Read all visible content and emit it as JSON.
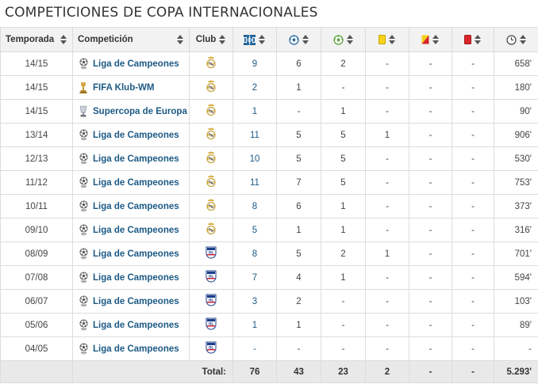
{
  "page": {
    "title": "COMPETICIONES DE COPA INTERNACIONALES"
  },
  "table": {
    "headers": {
      "season": "Temporada",
      "competition": "Competición",
      "club": "Club"
    },
    "stat_columns": [
      {
        "icon": "lineup-icon"
      },
      {
        "icon": "goal-icon"
      },
      {
        "icon": "assist-icon"
      },
      {
        "icon": "yellow-card-icon"
      },
      {
        "icon": "yellow-red-card-icon"
      },
      {
        "icon": "red-card-icon"
      },
      {
        "icon": "clock-icon"
      }
    ],
    "rows": [
      {
        "season": "14/15",
        "competition": "Liga de Campeones",
        "comp_icon": "champions-league-icon",
        "club_icon": "real-madrid-crest-icon",
        "apps": "9",
        "goals": "6",
        "assists": "2",
        "yellow": "-",
        "second_yellow": "-",
        "red": "-",
        "minutes": "658'"
      },
      {
        "season": "14/15",
        "competition": "FIFA Klub-WM",
        "comp_icon": "club-world-cup-trophy-icon",
        "club_icon": "real-madrid-crest-icon",
        "apps": "2",
        "goals": "1",
        "assists": "-",
        "yellow": "-",
        "second_yellow": "-",
        "red": "-",
        "minutes": "180'"
      },
      {
        "season": "14/15",
        "competition": "Supercopa de Europa",
        "comp_icon": "uefa-super-cup-icon",
        "club_icon": "real-madrid-crest-icon",
        "apps": "1",
        "goals": "-",
        "assists": "1",
        "yellow": "-",
        "second_yellow": "-",
        "red": "-",
        "minutes": "90'"
      },
      {
        "season": "13/14",
        "competition": "Liga de Campeones",
        "comp_icon": "champions-league-icon",
        "club_icon": "real-madrid-crest-icon",
        "apps": "11",
        "goals": "5",
        "assists": "5",
        "yellow": "1",
        "second_yellow": "-",
        "red": "-",
        "minutes": "906'"
      },
      {
        "season": "12/13",
        "competition": "Liga de Campeones",
        "comp_icon": "champions-league-icon",
        "club_icon": "real-madrid-crest-icon",
        "apps": "10",
        "goals": "5",
        "assists": "5",
        "yellow": "-",
        "second_yellow": "-",
        "red": "-",
        "minutes": "530'"
      },
      {
        "season": "11/12",
        "competition": "Liga de Campeones",
        "comp_icon": "champions-league-icon",
        "club_icon": "real-madrid-crest-icon",
        "apps": "11",
        "goals": "7",
        "assists": "5",
        "yellow": "-",
        "second_yellow": "-",
        "red": "-",
        "minutes": "753'"
      },
      {
        "season": "10/11",
        "competition": "Liga de Campeones",
        "comp_icon": "champions-league-icon",
        "club_icon": "real-madrid-crest-icon",
        "apps": "8",
        "goals": "6",
        "assists": "1",
        "yellow": "-",
        "second_yellow": "-",
        "red": "-",
        "minutes": "373'"
      },
      {
        "season": "09/10",
        "competition": "Liga de Campeones",
        "comp_icon": "champions-league-icon",
        "club_icon": "real-madrid-crest-icon",
        "apps": "5",
        "goals": "1",
        "assists": "1",
        "yellow": "-",
        "second_yellow": "-",
        "red": "-",
        "minutes": "316'"
      },
      {
        "season": "08/09",
        "competition": "Liga de Campeones",
        "comp_icon": "champions-league-icon",
        "club_icon": "olympique-lyon-crest-icon",
        "apps": "8",
        "goals": "5",
        "assists": "2",
        "yellow": "1",
        "second_yellow": "-",
        "red": "-",
        "minutes": "701'"
      },
      {
        "season": "07/08",
        "competition": "Liga de Campeones",
        "comp_icon": "champions-league-icon",
        "club_icon": "olympique-lyon-crest-icon",
        "apps": "7",
        "goals": "4",
        "assists": "1",
        "yellow": "-",
        "second_yellow": "-",
        "red": "-",
        "minutes": "594'"
      },
      {
        "season": "06/07",
        "competition": "Liga de Campeones",
        "comp_icon": "champions-league-icon",
        "club_icon": "olympique-lyon-crest-icon",
        "apps": "3",
        "goals": "2",
        "assists": "-",
        "yellow": "-",
        "second_yellow": "-",
        "red": "-",
        "minutes": "103'"
      },
      {
        "season": "05/06",
        "competition": "Liga de Campeones",
        "comp_icon": "champions-league-icon",
        "club_icon": "olympique-lyon-crest-icon",
        "apps": "1",
        "goals": "1",
        "assists": "-",
        "yellow": "-",
        "second_yellow": "-",
        "red": "-",
        "minutes": "89'"
      },
      {
        "season": "04/05",
        "competition": "Liga de Campeones",
        "comp_icon": "champions-league-icon",
        "club_icon": "olympique-lyon-crest-icon",
        "apps": "-",
        "goals": "-",
        "assists": "-",
        "yellow": "-",
        "second_yellow": "-",
        "red": "-",
        "minutes": "-"
      }
    ],
    "totals": {
      "label": "Total:",
      "apps": "76",
      "goals": "43",
      "assists": "23",
      "yellow": "2",
      "second_yellow": "-",
      "red": "-",
      "minutes": "5.293'"
    }
  },
  "colors": {
    "link": "#1d5a85",
    "header_bg": "#f2f2f2",
    "footer_bg": "#e9e9e9",
    "border": "#dcdcdc",
    "yellow_card": "#f5d21a",
    "red_card": "#d8262b"
  }
}
